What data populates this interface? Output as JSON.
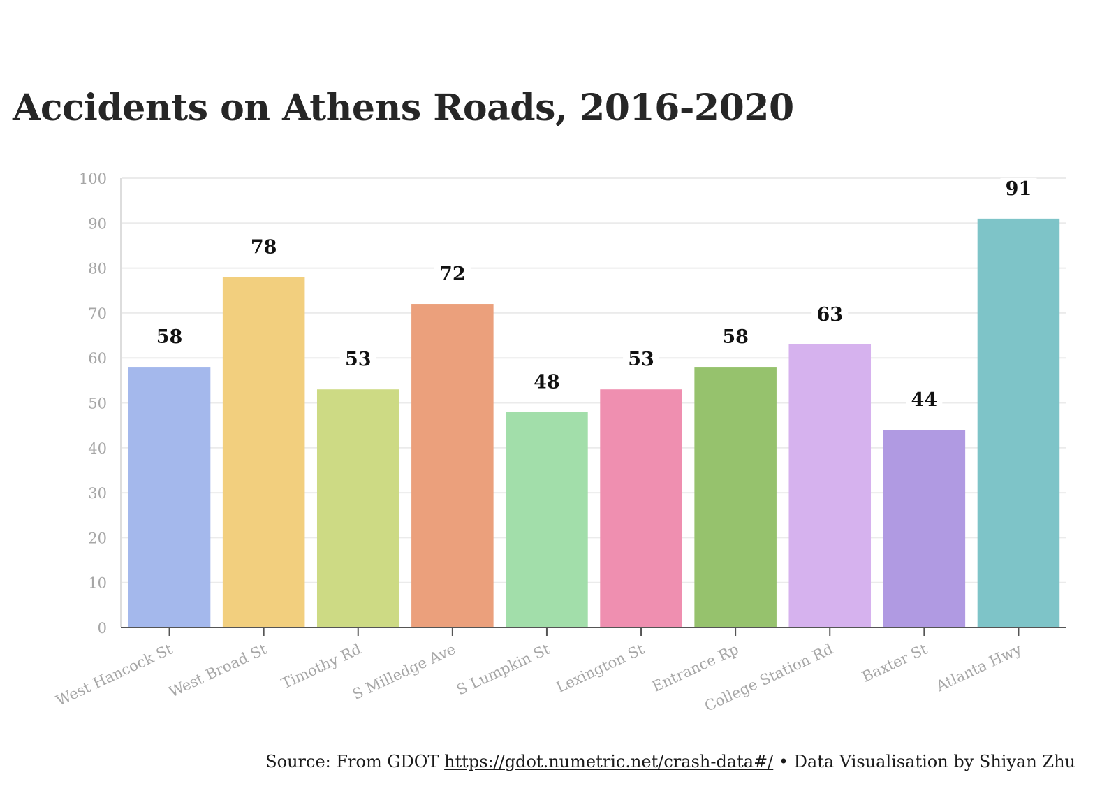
{
  "chart_data": {
    "type": "bar",
    "title": "Accidents on Athens Roads, 2016-2020",
    "categories": [
      "West Hancock St",
      "West Broad St",
      "Timothy Rd",
      "S Milledge Ave",
      "S Lumpkin St",
      "Lexington St",
      "Entrance Rp",
      "College Station Rd",
      "Baxter St",
      "Atlanta Hwy"
    ],
    "values": [
      58,
      78,
      53,
      72,
      48,
      53,
      58,
      63,
      44,
      91
    ],
    "colors": [
      "#a4b8ec",
      "#f2cf7e",
      "#cdda84",
      "#eba07c",
      "#a2deaa",
      "#ef8fb0",
      "#96c26d",
      "#d6b2ee",
      "#b09ae2",
      "#7ec4c8"
    ],
    "ylim": [
      0,
      100
    ],
    "yticks": [
      0,
      10,
      20,
      30,
      40,
      50,
      60,
      70,
      80,
      90,
      100
    ],
    "xlabel": "",
    "ylabel": "",
    "grid": true,
    "data_labels": true
  },
  "footer": {
    "source_prefix": "Source: From GDOT",
    "source_link": "https://gdot.numetric.net/crash-data#/",
    "credit": "• Data Visualisation by Shiyan Zhu"
  }
}
